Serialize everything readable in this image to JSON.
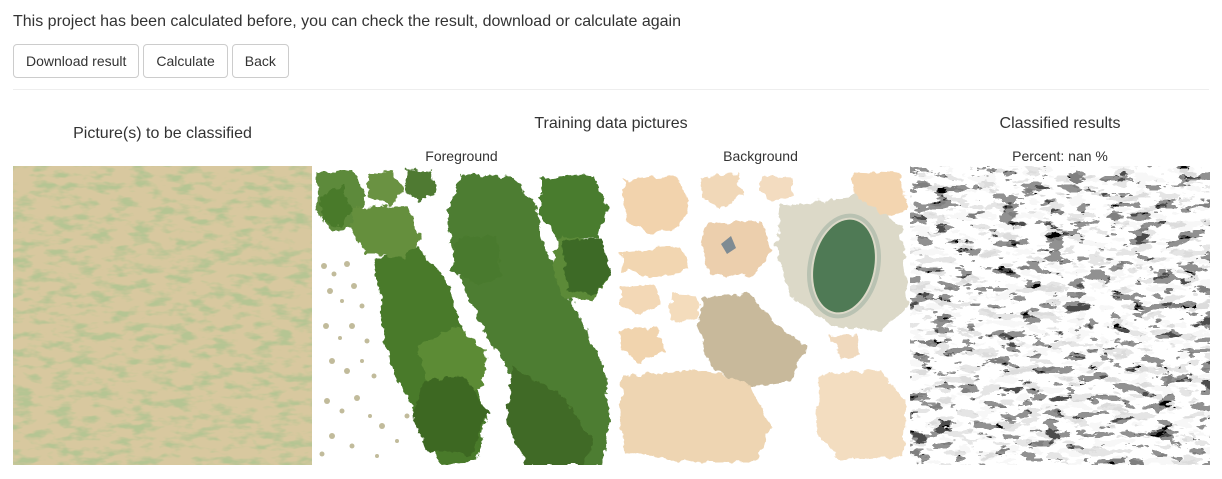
{
  "message": "This project has been calculated before, you can check the result, download or calculate again",
  "toolbar": {
    "download_label": "Download result",
    "calculate_label": "Calculate",
    "back_label": "Back"
  },
  "sections": {
    "input_title": "Picture(s) to be classified",
    "training_title": "Training data pictures",
    "foreground_label": "Foreground",
    "background_label": "Background",
    "results_title": "Classified results",
    "percent_label": "Percent: nan %"
  },
  "colors": {
    "sand": "#d6c69a",
    "vegetation": "#5f8a3c",
    "dark_green": "#3f6a25",
    "background_sand": "#f2d3ad",
    "water": "#4f7a55"
  }
}
